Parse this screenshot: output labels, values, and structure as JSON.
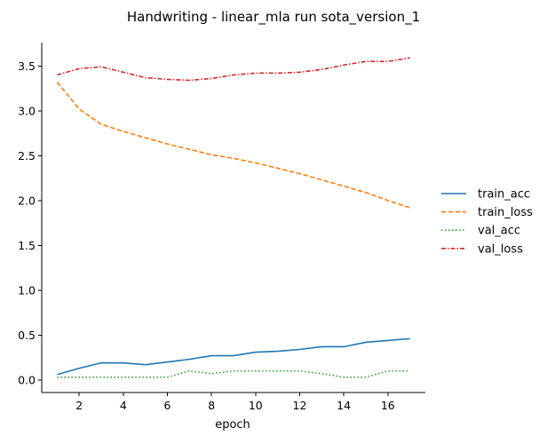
{
  "chart_data": {
    "type": "line",
    "title": "Handwriting - linear_mla run sota_version_1",
    "xlabel": "epoch",
    "ylabel": "",
    "xlim": [
      0.3,
      17.7
    ],
    "ylim": [
      -0.14,
      3.76
    ],
    "xticks": [
      2,
      4,
      6,
      8,
      10,
      12,
      14,
      16
    ],
    "yticks": [
      0.0,
      0.5,
      1.0,
      1.5,
      2.0,
      2.5,
      3.0,
      3.5
    ],
    "grid": false,
    "legend_position": "right",
    "x": [
      1,
      2,
      3,
      4,
      5,
      6,
      7,
      8,
      9,
      10,
      11,
      12,
      13,
      14,
      15,
      16,
      17
    ],
    "series": [
      {
        "name": "train_acc",
        "color": "#1f77b4",
        "dash": "solid",
        "values": [
          0.06,
          0.13,
          0.19,
          0.19,
          0.17,
          0.2,
          0.23,
          0.27,
          0.27,
          0.31,
          0.32,
          0.34,
          0.37,
          0.37,
          0.42,
          0.44,
          0.46
        ]
      },
      {
        "name": "train_loss",
        "color": "#ff7f0e",
        "dash": "dashed",
        "values": [
          3.32,
          3.02,
          2.85,
          2.77,
          2.7,
          2.63,
          2.57,
          2.51,
          2.47,
          2.42,
          2.36,
          2.3,
          2.23,
          2.16,
          2.09,
          2.0,
          1.92
        ]
      },
      {
        "name": "val_acc",
        "color": "#2ca02c",
        "dash": "dotted",
        "values": [
          0.03,
          0.03,
          0.03,
          0.03,
          0.03,
          0.03,
          0.1,
          0.07,
          0.1,
          0.1,
          0.1,
          0.1,
          0.07,
          0.03,
          0.03,
          0.1,
          0.1
        ]
      },
      {
        "name": "val_loss",
        "color": "#d62728",
        "dash": "dashdot",
        "values": [
          3.4,
          3.47,
          3.49,
          3.43,
          3.37,
          3.35,
          3.34,
          3.36,
          3.4,
          3.42,
          3.42,
          3.43,
          3.46,
          3.51,
          3.55,
          3.55,
          3.59
        ]
      }
    ]
  }
}
